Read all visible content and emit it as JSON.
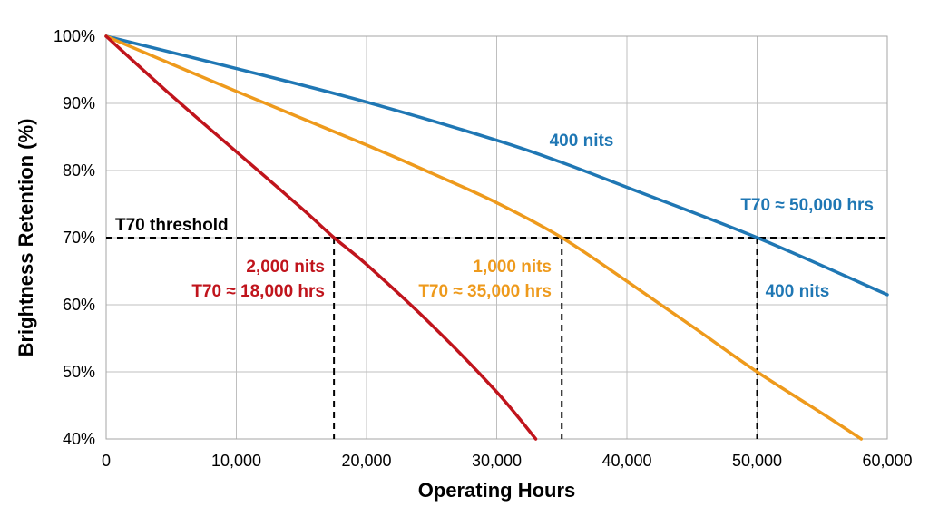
{
  "chart_data": {
    "type": "line",
    "xlabel": "Operating Hours",
    "ylabel": "Brightness Retention (%)",
    "xlim": [
      0,
      60000
    ],
    "ylim": [
      40,
      100
    ],
    "x_ticks": [
      "0",
      "10,000",
      "20,000",
      "30,000",
      "40,000",
      "50,000",
      "60,000"
    ],
    "y_ticks": [
      "40%",
      "50%",
      "60%",
      "70%",
      "80%",
      "90%",
      "100%"
    ],
    "grid": true,
    "threshold": {
      "label": "T70 threshold",
      "y": 70
    },
    "series": [
      {
        "id": "s400",
        "color": "#1f77b4",
        "x": [
          0,
          10000,
          20000,
          30000,
          35000,
          40000,
          50000,
          60000
        ],
        "y": [
          100,
          95.2,
          90.2,
          84.5,
          81.2,
          77.5,
          70,
          61.5
        ]
      },
      {
        "id": "s1000",
        "color": "#ee9a1c",
        "x": [
          0,
          10000,
          20000,
          25000,
          30000,
          35000,
          40000,
          45000,
          50000,
          55000,
          58000
        ],
        "y": [
          100,
          91.8,
          83.8,
          79.6,
          75.2,
          70,
          63.5,
          56.8,
          50,
          43.8,
          40
        ]
      },
      {
        "id": "s2000",
        "color": "#c0141c",
        "x": [
          0,
          5000,
          10000,
          15000,
          17500,
          20000,
          25000,
          30000,
          33000
        ],
        "y": [
          100,
          91.2,
          82.8,
          74.4,
          70,
          66,
          57,
          47,
          40
        ]
      }
    ],
    "t70_markers": [
      {
        "series": "s2000",
        "x": 17500
      },
      {
        "series": "s1000",
        "x": 35000
      },
      {
        "series": "s400",
        "x": 50000
      }
    ],
    "annotations": [
      {
        "id": "ann-400-upper",
        "text": "400 nits",
        "color": "#1f77b4"
      },
      {
        "id": "ann-400-t70",
        "text": "T70 ≈ 50,000 hrs",
        "color": "#1f77b4"
      },
      {
        "id": "ann-400-lower",
        "text": "400 nits",
        "color": "#1f77b4"
      },
      {
        "id": "ann-2000-name",
        "text": "2,000 nits",
        "color": "#c0141c"
      },
      {
        "id": "ann-2000-t70",
        "text": "T70 ≈ 18,000 hrs",
        "color": "#c0141c"
      },
      {
        "id": "ann-1000-name",
        "text": "1,000 nits",
        "color": "#ee9a1c"
      },
      {
        "id": "ann-1000-t70",
        "text": "T70 ≈ 35,000 hrs",
        "color": "#ee9a1c"
      }
    ]
  }
}
